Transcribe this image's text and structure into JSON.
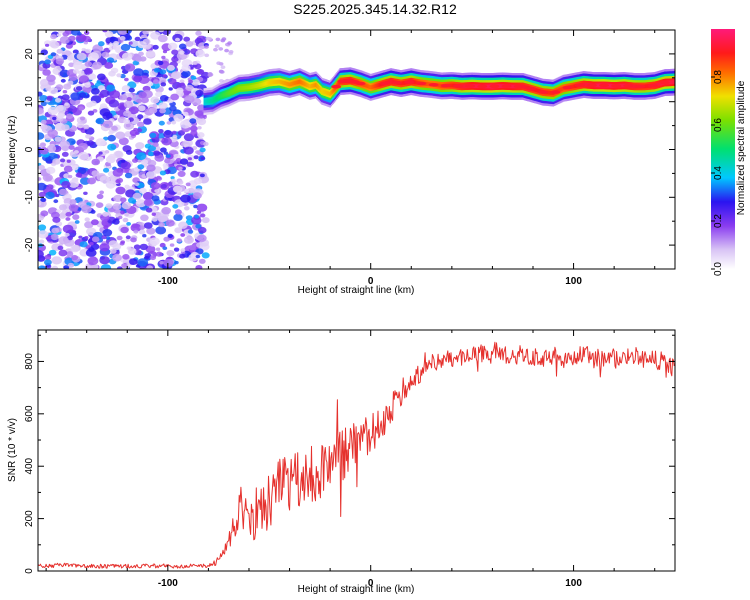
{
  "title": "S225.2025.345.14.32.R12",
  "colors": {
    "snr_line": "#e5312d",
    "speckle": "#6a1fe0",
    "frame": "#000000"
  },
  "chart_data": [
    {
      "type": "heatmap",
      "title": "S225.2025.345.14.32.R12",
      "xlabel": "Height of straight line (km)",
      "ylabel": "Frequency (Hz)",
      "xlim": [
        -164,
        150
      ],
      "ylim": [
        -25,
        25
      ],
      "x_ticks": [
        -100,
        0,
        100
      ],
      "y_ticks": [
        -20,
        -10,
        0,
        10,
        20
      ],
      "colorbar": {
        "label": "Normalized spectral amplitude",
        "range": [
          0,
          1
        ],
        "ticks": [
          "0.0",
          "0.2",
          "0.4",
          "0.6",
          "0.8"
        ],
        "stops": [
          {
            "v": 0.0,
            "color": "#ffffff"
          },
          {
            "v": 0.08,
            "color": "#d9c4f5"
          },
          {
            "v": 0.18,
            "color": "#8a3cf0"
          },
          {
            "v": 0.28,
            "color": "#2a14f0"
          },
          {
            "v": 0.38,
            "color": "#00c8ff"
          },
          {
            "v": 0.5,
            "color": "#00e070"
          },
          {
            "v": 0.62,
            "color": "#7ce000"
          },
          {
            "v": 0.72,
            "color": "#f0e000"
          },
          {
            "v": 0.82,
            "color": "#ff6a00"
          },
          {
            "v": 0.9,
            "color": "#ff1a1a"
          },
          {
            "v": 1.0,
            "color": "#ff1a7a"
          }
        ]
      },
      "noise_region_x": [
        -164,
        -81
      ],
      "ridge": {
        "x": [
          -82,
          -78,
          -74,
          -70,
          -65,
          -60,
          -55,
          -50,
          -45,
          -40,
          -35,
          -30,
          -27,
          -24,
          -20,
          -18,
          -15,
          -10,
          -5,
          0,
          5,
          10,
          15,
          20,
          25,
          30,
          35,
          40,
          45,
          50,
          55,
          60,
          65,
          70,
          75,
          80,
          85,
          90,
          95,
          100,
          105,
          110,
          115,
          120,
          125,
          130,
          135,
          140,
          145,
          150
        ],
        "freq": [
          10.0,
          10.2,
          11.2,
          11.8,
          12.8,
          13.0,
          13.4,
          14.0,
          14.2,
          13.6,
          14.2,
          13.2,
          13.5,
          12.2,
          11.6,
          12.6,
          14.2,
          14.4,
          13.8,
          13.0,
          13.6,
          14.2,
          13.8,
          14.2,
          13.8,
          13.6,
          13.3,
          13.4,
          13.2,
          13.3,
          13.2,
          13.2,
          13.3,
          13.2,
          13.2,
          12.6,
          12.0,
          11.8,
          12.8,
          13.2,
          13.6,
          13.4,
          13.4,
          13.3,
          13.4,
          13.2,
          13.2,
          13.4,
          14.0,
          14.1
        ],
        "amp": [
          0.4,
          0.45,
          0.5,
          0.55,
          0.6,
          0.62,
          0.65,
          0.7,
          0.72,
          0.75,
          0.78,
          0.72,
          0.75,
          0.7,
          0.72,
          0.78,
          0.85,
          0.88,
          0.82,
          0.78,
          0.86,
          0.88,
          0.85,
          0.88,
          0.82,
          0.8,
          0.82,
          0.85,
          0.88,
          0.9,
          0.9,
          0.92,
          0.9,
          0.9,
          0.88,
          0.86,
          0.85,
          0.84,
          0.82,
          0.85,
          0.88,
          0.9,
          0.92,
          0.9,
          0.9,
          0.88,
          0.86,
          0.88,
          0.9,
          0.9
        ]
      }
    },
    {
      "type": "line",
      "title": "",
      "xlabel": "Height of straight line (km)",
      "ylabel": "SNR (10 * v/v)",
      "xlim": [
        -164,
        150
      ],
      "ylim": [
        0,
        920
      ],
      "x_ticks": [
        -100,
        0,
        100
      ],
      "y_ticks": [
        0,
        200,
        400,
        600,
        800
      ],
      "series": [
        {
          "name": "SNR",
          "x": [
            -164,
            -150,
            -130,
            -110,
            -90,
            -80,
            -75,
            -72,
            -70,
            -68,
            -66,
            -64,
            -62,
            -60,
            -55,
            -50,
            -45,
            -40,
            -35,
            -30,
            -25,
            -20,
            -15,
            -10,
            -5,
            0,
            5,
            10,
            15,
            20,
            25,
            30,
            35,
            40,
            45,
            50,
            55,
            60,
            65,
            70,
            75,
            80,
            85,
            90,
            95,
            100,
            105,
            110,
            115,
            120,
            125,
            130,
            135,
            140,
            145,
            150
          ],
          "values": [
            20,
            22,
            18,
            20,
            18,
            20,
            40,
            80,
            110,
            150,
            200,
            240,
            180,
            220,
            230,
            260,
            300,
            320,
            330,
            360,
            380,
            400,
            430,
            460,
            480,
            520,
            560,
            620,
            680,
            730,
            760,
            790,
            800,
            810,
            815,
            820,
            830,
            840,
            830,
            820,
            830,
            815,
            810,
            825,
            805,
            820,
            830,
            810,
            820,
            815,
            810,
            820,
            810,
            805,
            800,
            770
          ],
          "noise_amp": [
            8,
            8,
            8,
            8,
            8,
            8,
            15,
            25,
            40,
            50,
            60,
            120,
            100,
            110,
            110,
            120,
            130,
            130,
            125,
            120,
            115,
            110,
            105,
            100,
            90,
            80,
            75,
            60,
            50,
            40,
            40,
            40,
            35,
            35,
            35,
            35,
            35,
            35,
            35,
            35,
            35,
            35,
            35,
            35,
            35,
            35,
            35,
            35,
            35,
            35,
            35,
            35,
            35,
            35,
            35,
            40
          ]
        }
      ]
    }
  ]
}
